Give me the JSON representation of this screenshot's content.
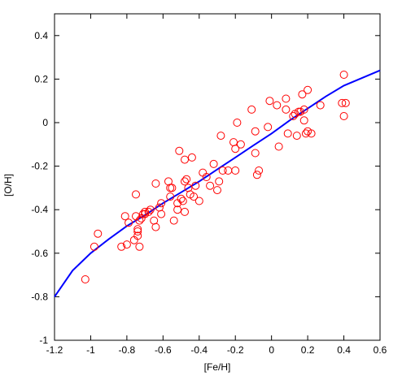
{
  "chart_data": {
    "type": "scatter",
    "xlabel": "[Fe/H]",
    "ylabel": "[O/H]",
    "xlim": [
      -1.2,
      0.6
    ],
    "ylim": [
      -1.0,
      0.5
    ],
    "x_ticks": [
      -1.2,
      -1,
      -0.8,
      -0.6,
      -0.4,
      -0.2,
      0,
      0.2,
      0.4,
      0.6
    ],
    "x_tick_labels": [
      "-1.2",
      "-1",
      "-0.8",
      "-0.6",
      "-0.4",
      "-0.2",
      "0",
      "0.2",
      "0.4",
      "0.6"
    ],
    "y_ticks": [
      -1.0,
      -0.8,
      -0.6,
      -0.4,
      -0.2,
      0,
      0.2,
      0.4
    ],
    "y_tick_labels": [
      "-1",
      "-0.8",
      "-0.6",
      "-0.4",
      "-0.2",
      "0",
      "0.2",
      "0.4"
    ],
    "grid": false,
    "colors": {
      "points": "#ff0000",
      "curve": "#0000ff"
    },
    "series": [
      {
        "kind": "points",
        "marker": "open-circle",
        "x": [
          -1.03,
          -0.98,
          -0.96,
          -0.83,
          -0.81,
          -0.8,
          -0.79,
          -0.76,
          -0.75,
          -0.75,
          -0.74,
          -0.74,
          -0.74,
          -0.73,
          -0.73,
          -0.72,
          -0.71,
          -0.7,
          -0.7,
          -0.68,
          -0.67,
          -0.65,
          -0.64,
          -0.64,
          -0.62,
          -0.61,
          -0.61,
          -0.57,
          -0.56,
          -0.56,
          -0.55,
          -0.54,
          -0.52,
          -0.52,
          -0.51,
          -0.5,
          -0.49,
          -0.48,
          -0.48,
          -0.48,
          -0.47,
          -0.46,
          -0.45,
          -0.44,
          -0.43,
          -0.42,
          -0.4,
          -0.38,
          -0.36,
          -0.34,
          -0.32,
          -0.3,
          -0.29,
          -0.28,
          -0.27,
          -0.24,
          -0.21,
          -0.2,
          -0.2,
          -0.19,
          -0.17,
          -0.11,
          -0.09,
          -0.09,
          -0.08,
          -0.07,
          -0.02,
          -0.01,
          0.03,
          0.04,
          0.08,
          0.08,
          0.09,
          0.12,
          0.13,
          0.14,
          0.15,
          0.16,
          0.17,
          0.18,
          0.18,
          0.19,
          0.2,
          0.2,
          0.22,
          0.27,
          0.39,
          0.4,
          0.4,
          0.41
        ],
        "y": [
          -0.72,
          -0.57,
          -0.51,
          -0.57,
          -0.43,
          -0.56,
          -0.46,
          -0.54,
          -0.43,
          -0.33,
          -0.49,
          -0.5,
          -0.52,
          -0.45,
          -0.57,
          -0.44,
          -0.42,
          -0.42,
          -0.41,
          -0.41,
          -0.4,
          -0.45,
          -0.48,
          -0.28,
          -0.39,
          -0.37,
          -0.42,
          -0.27,
          -0.3,
          -0.34,
          -0.3,
          -0.45,
          -0.37,
          -0.4,
          -0.13,
          -0.35,
          -0.36,
          -0.17,
          -0.27,
          -0.41,
          -0.26,
          -0.3,
          -0.33,
          -0.16,
          -0.34,
          -0.29,
          -0.36,
          -0.23,
          -0.25,
          -0.29,
          -0.19,
          -0.31,
          -0.27,
          -0.06,
          -0.22,
          -0.22,
          -0.09,
          -0.22,
          -0.12,
          0.0,
          -0.1,
          0.06,
          -0.04,
          -0.14,
          -0.24,
          -0.22,
          -0.02,
          0.1,
          0.08,
          -0.11,
          0.11,
          0.06,
          -0.05,
          0.03,
          0.04,
          -0.06,
          0.05,
          0.05,
          0.13,
          0.06,
          0.01,
          -0.05,
          -0.04,
          0.15,
          -0.05,
          0.08,
          0.09,
          0.03,
          0.22,
          0.09
        ]
      },
      {
        "kind": "curve",
        "x": [
          -1.2,
          -1.1,
          -1.0,
          -0.9,
          -0.8,
          -0.7,
          -0.6,
          -0.5,
          -0.4,
          -0.3,
          -0.2,
          -0.1,
          0.0,
          0.1,
          0.2,
          0.3,
          0.4,
          0.5,
          0.6
        ],
        "y": [
          -0.8,
          -0.68,
          -0.6,
          -0.535,
          -0.475,
          -0.425,
          -0.37,
          -0.32,
          -0.27,
          -0.215,
          -0.16,
          -0.105,
          -0.05,
          0.01,
          0.065,
          0.12,
          0.17,
          0.205,
          0.24
        ]
      }
    ]
  }
}
